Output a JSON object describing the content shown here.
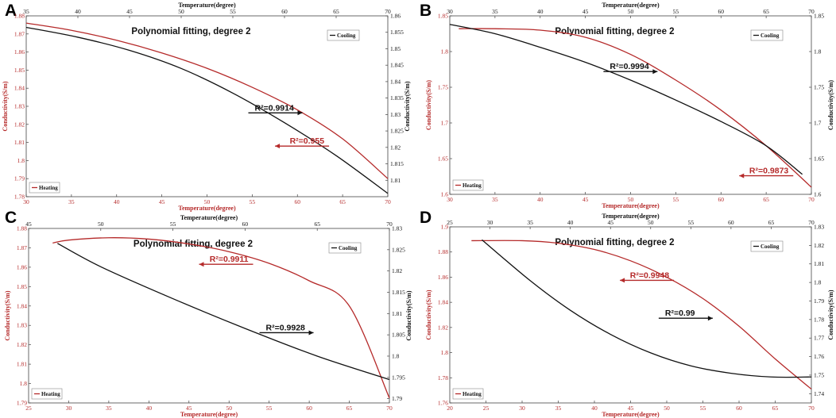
{
  "colors": {
    "heating": "#b52a2a",
    "cooling": "#111111",
    "axis": "#444444"
  },
  "chart_data": [
    {
      "type": "line",
      "panel": "A",
      "title": "Polynomial fitting, degree 2",
      "xlabel_bottom": "Temperature(degree)",
      "xlabel_top": "Temperature(degree)",
      "ylabel_left": "Conductivity(S/m)",
      "ylabel_right": "Conductivity(S/m)",
      "xlim_bottom": [
        30,
        70
      ],
      "xticks_bottom": [
        "30",
        "35",
        "40",
        "45",
        "50",
        "55",
        "60",
        "65",
        "70"
      ],
      "xlim_top": [
        35,
        70
      ],
      "xticks_top": [
        "35",
        "40",
        "45",
        "50",
        "55",
        "60",
        "65",
        "70"
      ],
      "ylim_left": [
        1.78,
        1.88
      ],
      "yticks_left": [
        "1.78",
        "1.79",
        "1.8",
        "1.81",
        "1.82",
        "1.83",
        "1.84",
        "1.85",
        "1.86",
        "1.87",
        "1.88"
      ],
      "ylim_right": [
        1.805,
        1.86
      ],
      "yticks_right": [
        "1.81",
        "1.815",
        "1.82",
        "1.825",
        "1.83",
        "1.835",
        "1.84",
        "1.845",
        "1.85",
        "1.855",
        "1.86"
      ],
      "legend_heating": {
        "label": "Heating",
        "position": "bottom-left"
      },
      "legend_cooling": {
        "label": "Cooling",
        "position": "top-right"
      },
      "series": [
        {
          "name": "Heating",
          "axis": "bottom-left",
          "x": [
            30,
            35,
            40,
            45,
            50,
            55,
            60,
            65,
            70
          ],
          "y": [
            1.876,
            1.872,
            1.8665,
            1.8595,
            1.851,
            1.8405,
            1.828,
            1.812,
            1.79
          ]
        },
        {
          "name": "Cooling",
          "axis": "top-right",
          "x": [
            35,
            40,
            45,
            50,
            55,
            60,
            65,
            70
          ],
          "y": [
            1.8565,
            1.8535,
            1.8495,
            1.844,
            1.8365,
            1.8275,
            1.8175,
            1.806
          ]
        }
      ],
      "annotations": [
        {
          "text": "R²=0.9914",
          "series": "Cooling",
          "x": 56.5,
          "y": 1.8305,
          "dir": "right"
        },
        {
          "text": "R²=0.955",
          "series": "Heating",
          "x": 63.5,
          "y": 1.808,
          "dir": "left"
        }
      ]
    },
    {
      "type": "line",
      "panel": "B",
      "title": "Polynomial fitting, degree 2",
      "xlabel_bottom": "Temperature(degree)",
      "xlabel_top": "Temperature(degree)",
      "ylabel_left": "Conductivity(S/m)",
      "ylabel_right": "Conductivity(S/m)",
      "xlim_bottom": [
        30,
        70
      ],
      "xticks_bottom": [
        "30",
        "35",
        "40",
        "45",
        "50",
        "55",
        "60",
        "65",
        "70"
      ],
      "xlim_top": [
        30,
        70
      ],
      "xticks_top": [
        "30",
        "35",
        "40",
        "45",
        "50",
        "55",
        "60",
        "65",
        "70"
      ],
      "ylim_left": [
        1.6,
        1.85
      ],
      "yticks_left": [
        "1.6",
        "1.65",
        "1.7",
        "1.75",
        "1.8",
        "1.85"
      ],
      "ylim_right": [
        1.6,
        1.85
      ],
      "yticks_right": [
        "1.6",
        "1.65",
        "1.7",
        "1.75",
        "1.8",
        "1.85"
      ],
      "legend_heating": {
        "label": "Heating",
        "position": "bottom-left"
      },
      "legend_cooling": {
        "label": "Cooling",
        "position": "top-right"
      },
      "series": [
        {
          "name": "Heating",
          "axis": "bottom-left",
          "x": [
            31,
            35,
            40,
            45,
            50,
            55,
            60,
            65,
            70
          ],
          "y": [
            1.832,
            1.832,
            1.83,
            1.82,
            1.796,
            1.76,
            1.718,
            1.668,
            1.61
          ]
        },
        {
          "name": "Cooling",
          "axis": "top-right",
          "x": [
            30,
            35,
            40,
            45,
            50,
            55,
            60,
            65,
            69
          ],
          "y": [
            1.838,
            1.825,
            1.806,
            1.785,
            1.76,
            1.732,
            1.702,
            1.668,
            1.628
          ]
        }
      ],
      "annotations": [
        {
          "text": "R²=0.9994",
          "series": "Cooling",
          "x": 47,
          "y": 1.772,
          "dir": "right"
        },
        {
          "text": "R²=0.9873",
          "series": "Heating",
          "x": 68,
          "y": 1.626,
          "dir": "left"
        }
      ]
    },
    {
      "type": "line",
      "panel": "C",
      "title": "Polynomial fitting, degree 2",
      "xlabel_bottom": "Temperature(degree)",
      "xlabel_top": "Temperature(degree)",
      "ylabel_left": "Conductivity(S/m)",
      "ylabel_right": "Conductivity(S/m)",
      "xlim_bottom": [
        25,
        70
      ],
      "xticks_bottom": [
        "25",
        "30",
        "35",
        "40",
        "45",
        "50",
        "55",
        "60",
        "65",
        "70"
      ],
      "xlim_top": [
        45,
        70
      ],
      "xticks_top": [
        "45",
        "50",
        "55",
        "60",
        "65",
        "70"
      ],
      "ylim_left": [
        1.79,
        1.88
      ],
      "yticks_left": [
        "1.79",
        "1.8",
        "1.81",
        "1.82",
        "1.83",
        "1.84",
        "1.85",
        "1.86",
        "1.87",
        "1.88"
      ],
      "ylim_right": [
        1.789,
        1.83
      ],
      "yticks_right": [
        "1.79",
        "1.795",
        "1.8",
        "1.805",
        "1.81",
        "1.815",
        "1.82",
        "1.825",
        "1.83"
      ],
      "legend_heating": {
        "label": "Heating",
        "position": "bottom-left"
      },
      "legend_cooling": {
        "label": "Cooling",
        "position": "top-right"
      },
      "series": [
        {
          "name": "Heating",
          "axis": "bottom-left",
          "x": [
            28,
            30,
            35,
            40,
            45,
            50,
            55,
            60,
            65,
            70
          ],
          "y": [
            1.8725,
            1.874,
            1.8752,
            1.8745,
            1.872,
            1.868,
            1.862,
            1.853,
            1.84,
            1.7925
          ]
        },
        {
          "name": "Cooling",
          "axis": "top-right",
          "x": [
            47,
            50,
            55,
            60,
            65,
            70
          ],
          "y": [
            1.8265,
            1.821,
            1.8135,
            1.8065,
            1.8,
            1.7945
          ]
        }
      ],
      "annotations": [
        {
          "text": "R²=0.9911",
          "series": "Heating",
          "x": 53,
          "y": 1.8615,
          "dir": "left"
        },
        {
          "text": "R²=0.9928",
          "series": "Cooling",
          "x": 61,
          "y": 1.8055,
          "dir": "right"
        }
      ]
    },
    {
      "type": "line",
      "panel": "D",
      "title": "Polynomial fitting, degree 2",
      "xlabel_bottom": "Temperature(degree)",
      "xlabel_top": "Temperature(degree)",
      "ylabel_left": "Conductivity(S/m)",
      "ylabel_right": "Conductivity(S/m)",
      "xlim_bottom": [
        20,
        70
      ],
      "xticks_bottom": [
        "20",
        "25",
        "30",
        "35",
        "40",
        "45",
        "50",
        "55",
        "60",
        "65",
        "70"
      ],
      "xlim_top": [
        25,
        70
      ],
      "xticks_top": [
        "25",
        "30",
        "35",
        "40",
        "45",
        "50",
        "55",
        "60",
        "65",
        "70"
      ],
      "ylim_left": [
        1.76,
        1.9
      ],
      "yticks_left": [
        "1.76",
        "1.78",
        "1.8",
        "1.82",
        "1.84",
        "1.86",
        "1.88",
        "1.9"
      ],
      "ylim_right": [
        1.735,
        1.83
      ],
      "yticks_right": [
        "1.74",
        "1.75",
        "1.76",
        "1.77",
        "1.78",
        "1.79",
        "1.8",
        "1.81",
        "1.82",
        "1.83"
      ],
      "legend_heating": {
        "label": "Heating",
        "position": "bottom-left"
      },
      "legend_cooling": {
        "label": "Cooling",
        "position": "top-right"
      },
      "series": [
        {
          "name": "Heating",
          "axis": "bottom-left",
          "x": [
            23,
            30,
            35,
            40,
            45,
            50,
            55,
            60,
            65,
            70
          ],
          "y": [
            1.889,
            1.889,
            1.887,
            1.882,
            1.873,
            1.86,
            1.843,
            1.821,
            1.795,
            1.771
          ]
        },
        {
          "name": "Cooling",
          "axis": "top-right",
          "x": [
            29,
            35,
            40,
            45,
            50,
            55,
            60,
            65,
            70
          ],
          "y": [
            1.823,
            1.801,
            1.785,
            1.772,
            1.762,
            1.755,
            1.751,
            1.749,
            1.749
          ]
        }
      ],
      "annotations": [
        {
          "text": "R²=0.9948",
          "series": "Heating",
          "x": 51,
          "y": 1.8575,
          "dir": "left"
        },
        {
          "text": "R²=0.99",
          "series": "Cooling",
          "x": 51,
          "y": 1.7807,
          "dir": "right"
        }
      ]
    }
  ]
}
